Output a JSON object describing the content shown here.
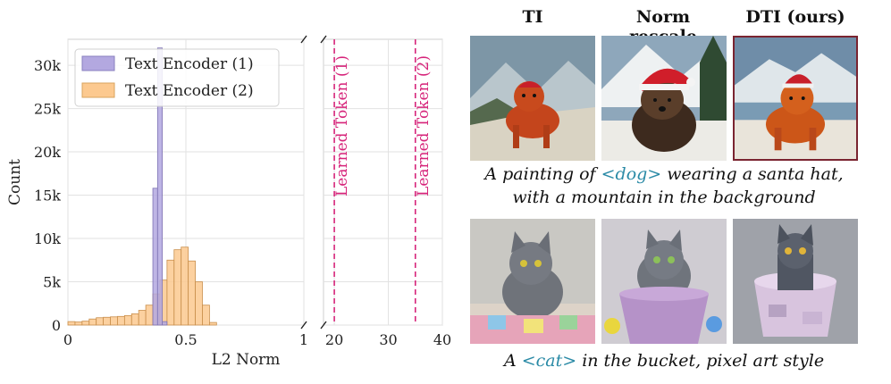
{
  "chart_data": [
    {
      "type": "bar",
      "ylabel": "Count",
      "xlabel": "L2 Norm",
      "x_ticks_left": [
        "0",
        "0.5",
        "1"
      ],
      "x_ticks_right": [
        "20",
        "30",
        "40"
      ],
      "y_ticks": [
        "0",
        "5k",
        "10k",
        "15k",
        "20k",
        "25k",
        "30k"
      ],
      "ylim": [
        0,
        33000
      ],
      "xlim_left": [
        0,
        1
      ],
      "xlim_right": [
        18,
        40
      ],
      "grid": true,
      "legend_position": "top-left",
      "series": [
        {
          "name": "Text Encoder (1)",
          "color": "#b3a8e0",
          "bins": [
            {
              "x0": 0.36,
              "x1": 0.38,
              "value": 15800
            },
            {
              "x0": 0.38,
              "x1": 0.4,
              "value": 32000
            },
            {
              "x0": 0.4,
              "x1": 0.42,
              "value": 400
            }
          ]
        },
        {
          "name": "Text Encoder (2)",
          "color": "#fcc98f",
          "bins": [
            {
              "x0": 0.0,
              "x1": 0.03,
              "value": 400
            },
            {
              "x0": 0.03,
              "x1": 0.06,
              "value": 350
            },
            {
              "x0": 0.06,
              "x1": 0.09,
              "value": 450
            },
            {
              "x0": 0.09,
              "x1": 0.12,
              "value": 700
            },
            {
              "x0": 0.12,
              "x1": 0.15,
              "value": 850
            },
            {
              "x0": 0.15,
              "x1": 0.18,
              "value": 900
            },
            {
              "x0": 0.18,
              "x1": 0.21,
              "value": 950
            },
            {
              "x0": 0.21,
              "x1": 0.24,
              "value": 1000
            },
            {
              "x0": 0.24,
              "x1": 0.27,
              "value": 1100
            },
            {
              "x0": 0.27,
              "x1": 0.3,
              "value": 1300
            },
            {
              "x0": 0.3,
              "x1": 0.33,
              "value": 1700
            },
            {
              "x0": 0.33,
              "x1": 0.36,
              "value": 2300
            },
            {
              "x0": 0.36,
              "x1": 0.39,
              "value": 3600
            },
            {
              "x0": 0.39,
              "x1": 0.42,
              "value": 5200
            },
            {
              "x0": 0.42,
              "x1": 0.45,
              "value": 7500
            },
            {
              "x0": 0.45,
              "x1": 0.48,
              "value": 8700
            },
            {
              "x0": 0.48,
              "x1": 0.51,
              "value": 9000
            },
            {
              "x0": 0.51,
              "x1": 0.54,
              "value": 7400
            },
            {
              "x0": 0.54,
              "x1": 0.57,
              "value": 5000
            },
            {
              "x0": 0.57,
              "x1": 0.6,
              "value": 2300
            },
            {
              "x0": 0.6,
              "x1": 0.63,
              "value": 300
            }
          ]
        }
      ],
      "vlines": [
        {
          "x": 20,
          "label": "Learned Token (1)",
          "color": "#d6247a"
        },
        {
          "x": 35,
          "label": "Learned Token (2)",
          "color": "#d6247a"
        }
      ]
    }
  ],
  "figure": {
    "columns": [
      "TI",
      "Norm rescale",
      "DTI (ours)"
    ],
    "row1": {
      "caption_prefix": "A painting of ",
      "caption_token": "<dog>",
      "caption_suffix": " wearing a santa hat,",
      "caption_line2": "with a mountain in the background"
    },
    "row2": {
      "caption_prefix": "A ",
      "caption_token": "<cat>",
      "caption_suffix": " in the bucket, pixel art style"
    }
  }
}
